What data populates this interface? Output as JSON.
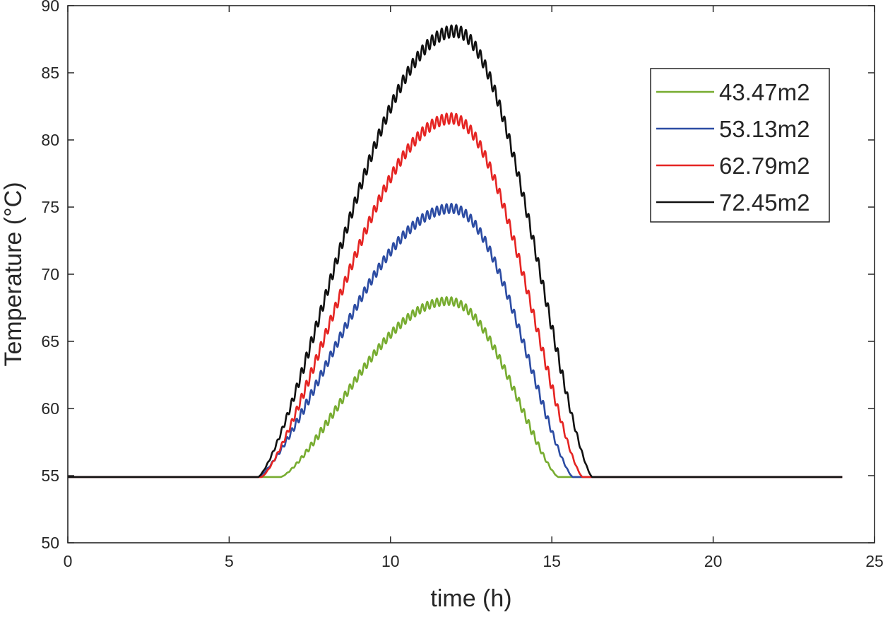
{
  "chart_data": {
    "type": "line",
    "title": "",
    "xlabel": "time (h)",
    "ylabel": "Temperature (°C)",
    "xlim": [
      0,
      25
    ],
    "ylim": [
      50,
      90
    ],
    "xticks": [
      0,
      5,
      10,
      15,
      20,
      25
    ],
    "yticks": [
      50,
      55,
      60,
      65,
      70,
      75,
      80,
      85,
      90
    ],
    "grid": false,
    "legend_position": "top-right",
    "baseline": 54.9,
    "x_end": 24,
    "ripple_period_h": 0.15,
    "series": [
      {
        "name": "43.47m2",
        "color": "#77ac30",
        "start_h": 6.6,
        "end_h": 15.2,
        "peak_h": 11.8,
        "peak_temp": 68.0,
        "ripple": 0.3
      },
      {
        "name": "53.13m2",
        "color": "#2c4ca3",
        "start_h": 5.9,
        "end_h": 15.65,
        "peak_h": 11.9,
        "peak_temp": 74.9,
        "ripple": 0.35
      },
      {
        "name": "62.79m2",
        "color": "#e52523",
        "start_h": 6.0,
        "end_h": 15.95,
        "peak_h": 11.9,
        "peak_temp": 81.6,
        "ripple": 0.4
      },
      {
        "name": "72.45m2",
        "color": "#111111",
        "start_h": 5.9,
        "end_h": 16.25,
        "peak_h": 12.0,
        "peak_temp": 88.1,
        "ripple": 0.45
      }
    ]
  }
}
